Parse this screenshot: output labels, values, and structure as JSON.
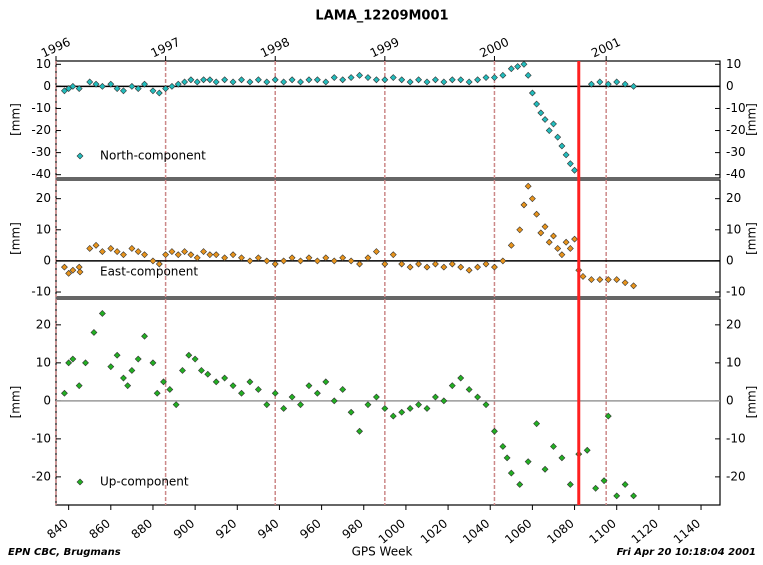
{
  "chart_data": [
    {
      "type": "scatter",
      "title": "LAMA_12209M001",
      "xlim": [
        834,
        1149
      ],
      "x2ticks": [
        {
          "value": 834,
          "label": "1996"
        },
        {
          "value": 886,
          "label": "1997"
        },
        {
          "value": 938,
          "label": "1998"
        },
        {
          "value": 990,
          "label": "1999"
        },
        {
          "value": 1042,
          "label": "2000"
        },
        {
          "value": 1095,
          "label": "2001"
        }
      ],
      "event_x": 1082,
      "event_color": "#ff2020",
      "x": [
        838,
        840,
        842,
        845,
        850,
        853,
        856,
        860,
        863,
        866,
        870,
        873,
        876,
        880,
        883,
        886,
        889,
        892,
        895,
        898,
        901,
        904,
        907,
        910,
        914,
        918,
        922,
        926,
        930,
        934,
        938,
        942,
        946,
        950,
        954,
        958,
        962,
        966,
        970,
        974,
        978,
        982,
        986,
        990,
        994,
        998,
        1002,
        1006,
        1010,
        1014,
        1018,
        1022,
        1026,
        1030,
        1034,
        1038,
        1042,
        1046,
        1050,
        1053,
        1056,
        1058,
        1060,
        1062,
        1064,
        1066,
        1068,
        1070,
        1072,
        1074,
        1076,
        1078,
        1080,
        1088,
        1092,
        1096,
        1100,
        1104,
        1108
      ],
      "series": [
        {
          "name": "North-component",
          "color": "#22bcbc",
          "values": [
            -2,
            -1,
            0,
            -1,
            2,
            1,
            0,
            1,
            -1,
            -2,
            0,
            -1,
            1,
            -2,
            -3,
            -1,
            0,
            1,
            2,
            3,
            2,
            3,
            3,
            2,
            3,
            2,
            3,
            2,
            3,
            2,
            3,
            2,
            3,
            2,
            3,
            3,
            2,
            4,
            3,
            4,
            5,
            4,
            3,
            3,
            4,
            3,
            2,
            3,
            2,
            3,
            2,
            3,
            3,
            2,
            3,
            4,
            4,
            5,
            8,
            9,
            10,
            5,
            -3,
            -8,
            -12,
            -15,
            -20,
            -17,
            -23,
            -27,
            -31,
            -35,
            -38,
            1,
            2,
            1,
            2,
            1,
            0
          ]
        }
      ],
      "ylim": [
        -41.5,
        11.5
      ],
      "yticks": [
        10,
        0,
        -10,
        -20,
        -30,
        -40
      ],
      "ylabel": "[mm]",
      "hline": 0,
      "hline_color": "#000000"
    },
    {
      "type": "scatter",
      "xlim": [
        834,
        1149
      ],
      "x": [
        838,
        840,
        842,
        845,
        850,
        853,
        856,
        860,
        863,
        866,
        870,
        873,
        876,
        880,
        883,
        886,
        889,
        892,
        895,
        898,
        901,
        904,
        907,
        910,
        914,
        918,
        922,
        926,
        930,
        934,
        938,
        942,
        946,
        950,
        954,
        958,
        962,
        966,
        970,
        974,
        978,
        982,
        986,
        990,
        994,
        998,
        1002,
        1006,
        1010,
        1014,
        1018,
        1022,
        1026,
        1030,
        1034,
        1038,
        1042,
        1046,
        1050,
        1054,
        1056,
        1058,
        1060,
        1062,
        1064,
        1066,
        1068,
        1070,
        1072,
        1074,
        1076,
        1078,
        1080,
        1082,
        1084,
        1088,
        1092,
        1096,
        1100,
        1104,
        1108
      ],
      "series": [
        {
          "name": "East-component",
          "color": "#e8941c",
          "values": [
            -2,
            -4,
            -3,
            -2,
            4,
            5,
            3,
            4,
            3,
            2,
            4,
            3,
            2,
            0,
            -1,
            2,
            3,
            2,
            3,
            2,
            1,
            3,
            2,
            2,
            1,
            2,
            1,
            0,
            1,
            0,
            -1,
            0,
            1,
            0,
            1,
            0,
            1,
            0,
            1,
            0,
            -1,
            1,
            3,
            -1,
            2,
            -1,
            -2,
            -1,
            -2,
            -1,
            -2,
            -1,
            -2,
            -3,
            -2,
            -1,
            -2,
            0,
            5,
            10,
            18,
            24,
            20,
            15,
            9,
            11,
            6,
            8,
            4,
            2,
            6,
            4,
            7,
            -3,
            -5,
            -6,
            -6,
            -6,
            -6,
            -7,
            -8
          ]
        }
      ],
      "ylim": [
        -11.6,
        26
      ],
      "yticks": [
        20,
        10,
        0,
        -10
      ],
      "ylabel": "[mm]",
      "hline": 0,
      "hline_color": "#000000"
    },
    {
      "type": "scatter",
      "xlim": [
        834,
        1149
      ],
      "xticks": [
        840,
        860,
        880,
        900,
        920,
        940,
        960,
        980,
        1000,
        1020,
        1040,
        1060,
        1080,
        1100,
        1120,
        1140
      ],
      "xlabel": "GPS Week",
      "x": [
        838,
        840,
        842,
        845,
        848,
        852,
        856,
        860,
        863,
        866,
        868,
        870,
        873,
        876,
        880,
        882,
        885,
        888,
        891,
        894,
        897,
        900,
        903,
        906,
        910,
        914,
        918,
        922,
        926,
        930,
        934,
        938,
        942,
        946,
        950,
        954,
        958,
        962,
        966,
        970,
        974,
        978,
        982,
        986,
        990,
        994,
        998,
        1002,
        1006,
        1010,
        1014,
        1018,
        1022,
        1026,
        1030,
        1034,
        1038,
        1042,
        1046,
        1048,
        1050,
        1054,
        1058,
        1062,
        1066,
        1070,
        1074,
        1078,
        1082,
        1086,
        1090,
        1094,
        1096,
        1100,
        1104,
        1108
      ],
      "series": [
        {
          "name": "Up-component",
          "color": "#22b022",
          "values": [
            2,
            10,
            11,
            4,
            10,
            18,
            23,
            9,
            12,
            6,
            4,
            8,
            11,
            17,
            10,
            2,
            5,
            3,
            -1,
            8,
            12,
            11,
            8,
            7,
            5,
            6,
            4,
            2,
            5,
            3,
            -1,
            2,
            -2,
            1,
            -1,
            4,
            2,
            5,
            0,
            3,
            -3,
            -8,
            -1,
            1,
            -2,
            -4,
            -3,
            -2,
            -1,
            -2,
            1,
            0,
            4,
            6,
            3,
            1,
            -1,
            -8,
            -12,
            -15,
            -19,
            -22,
            -16,
            -6,
            -18,
            -12,
            -15,
            -22,
            -14,
            -13,
            -23,
            -21,
            -4,
            -25,
            -22,
            -25
          ]
        }
      ],
      "ylim": [
        -27.4,
        26.8
      ],
      "yticks": [
        20,
        10,
        0,
        -10,
        -20
      ],
      "ylabel": "[mm]",
      "hline": 0,
      "hline_color": "#999999"
    }
  ],
  "footer": {
    "left": "EPN CBC, Brugmans",
    "right": "Fri Apr 20 10:18:04 2001"
  }
}
